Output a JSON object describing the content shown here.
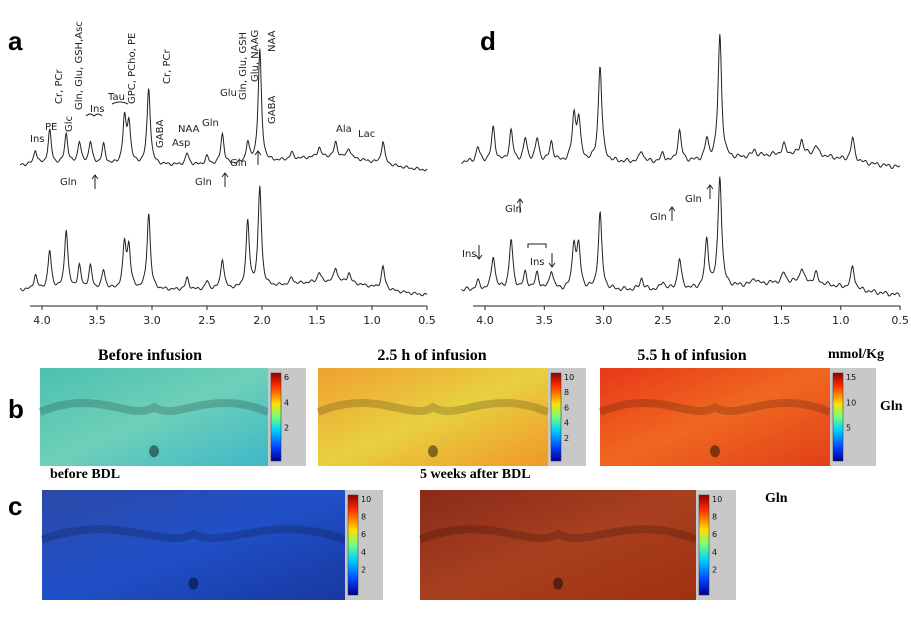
{
  "figure": {
    "panel_a": {
      "label": "a",
      "peak_labels": [
        "Ins",
        "PE",
        "Cr, PCr",
        "Glc",
        "Gln, Glu, GSH,Asc",
        "Ins",
        "Tau",
        "GPC, PCho, PE",
        "Cr, PCr",
        "GABA",
        "NAA",
        "Asp",
        "Gln",
        "Glu",
        "Gln, Glu, GSH",
        "Glu, NAAG",
        "NAA",
        "GABA",
        "Ala",
        "Lac"
      ],
      "shift_labels": [
        "Gln",
        "Gln",
        "Gln"
      ],
      "x_ticks": [
        "4.0",
        "3.5",
        "3.0",
        "2.5",
        "2.0",
        "1.5",
        "1.0",
        "0.5"
      ]
    },
    "panel_d": {
      "label": "d",
      "shift_labels": [
        "Ins",
        "Gln",
        "Ins",
        "Gln",
        "Gln"
      ],
      "x_ticks": [
        "4.0",
        "3.5",
        "3.0",
        "2.5",
        "2.0",
        "1.5",
        "1.0",
        "0.5"
      ]
    },
    "panel_b": {
      "label": "b",
      "unit": "mmol/Kg",
      "metabolite": "Gln",
      "maps": [
        {
          "title": "Before infusion",
          "colorbar_ticks": [
            "6",
            "4",
            "2"
          ]
        },
        {
          "title": "2.5 h of infusion",
          "colorbar_ticks": [
            "10",
            "8",
            "6",
            "4",
            "2"
          ]
        },
        {
          "title": "5.5 h of infusion",
          "colorbar_ticks": [
            "15",
            "10",
            "5"
          ]
        }
      ]
    },
    "panel_c": {
      "label": "c",
      "metabolite": "Gln",
      "maps": [
        {
          "title": "before BDL",
          "colorbar_ticks": [
            "10",
            "8",
            "6",
            "4",
            "2"
          ]
        },
        {
          "title": "5 weeks after BDL",
          "colorbar_ticks": [
            "10",
            "8",
            "6",
            "4",
            "2"
          ]
        }
      ]
    }
  }
}
